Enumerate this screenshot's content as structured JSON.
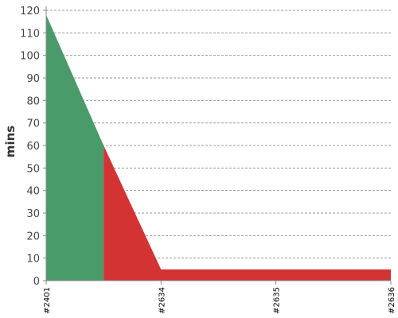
{
  "chart_data": {
    "type": "area",
    "title": "",
    "xlabel": "",
    "ylabel": "mins",
    "ylim": [
      0,
      120
    ],
    "yticks": [
      0,
      10,
      20,
      30,
      40,
      50,
      60,
      70,
      80,
      90,
      100,
      110,
      120
    ],
    "categories": [
      "#2401",
      "#2634",
      "#2635",
      "#2636"
    ],
    "grid": true,
    "series": [
      {
        "color": "#4a9b6a",
        "points": [
          {
            "x": 0,
            "y": 118
          },
          {
            "x": 0.5,
            "y": 60
          },
          {
            "x": 0.5,
            "y": 0
          }
        ]
      },
      {
        "color": "#d43333",
        "points": [
          {
            "x": 0.5,
            "y": 60
          },
          {
            "x": 1,
            "y": 5
          },
          {
            "x": 3,
            "y": 5
          }
        ]
      }
    ]
  }
}
